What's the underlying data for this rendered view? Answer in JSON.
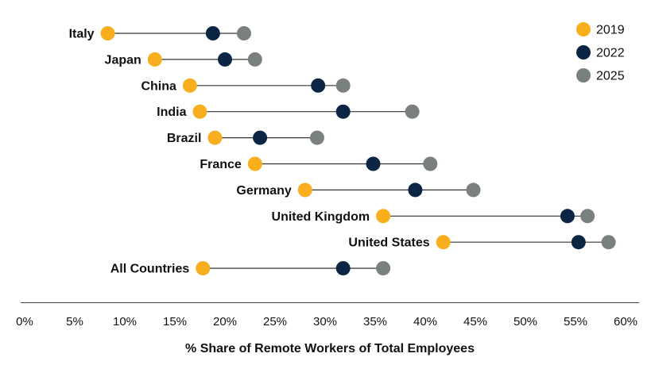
{
  "chart_data": {
    "type": "dumbbell",
    "title": "",
    "xlabel": "% Share of Remote Workers of Total Employees",
    "ylabel": "",
    "xlim": [
      0,
      60
    ],
    "x_ticks": [
      0,
      5,
      10,
      15,
      20,
      25,
      30,
      35,
      40,
      45,
      50,
      55,
      60
    ],
    "x_tick_labels": [
      "0%",
      "5%",
      "10%",
      "15%",
      "20%",
      "25%",
      "30%",
      "35%",
      "40%",
      "45%",
      "50%",
      "55%",
      "60%"
    ],
    "legend_position": "top-right",
    "series": [
      {
        "name": "2019",
        "color": "#F9AE1E"
      },
      {
        "name": "2022",
        "color": "#0B2545"
      },
      {
        "name": "2025",
        "color": "#7A807C"
      }
    ],
    "categories": [
      {
        "label": "Italy",
        "values": [
          8.3,
          18.8,
          21.9
        ]
      },
      {
        "label": "Japan",
        "values": [
          13.0,
          20.0,
          23.0
        ]
      },
      {
        "label": "China",
        "values": [
          16.5,
          29.3,
          31.8
        ]
      },
      {
        "label": "India",
        "values": [
          17.5,
          31.8,
          38.7
        ]
      },
      {
        "label": "Brazil",
        "values": [
          19.0,
          23.5,
          29.2
        ]
      },
      {
        "label": "France",
        "values": [
          23.0,
          34.8,
          40.5
        ]
      },
      {
        "label": "Germany",
        "values": [
          28.0,
          39.0,
          44.8
        ]
      },
      {
        "label": "United Kingdom",
        "values": [
          35.8,
          54.2,
          56.2
        ]
      },
      {
        "label": "United States",
        "values": [
          41.8,
          55.3,
          58.3
        ]
      },
      {
        "label": "All Countries",
        "values": [
          17.8,
          31.8,
          35.8
        ]
      }
    ]
  }
}
